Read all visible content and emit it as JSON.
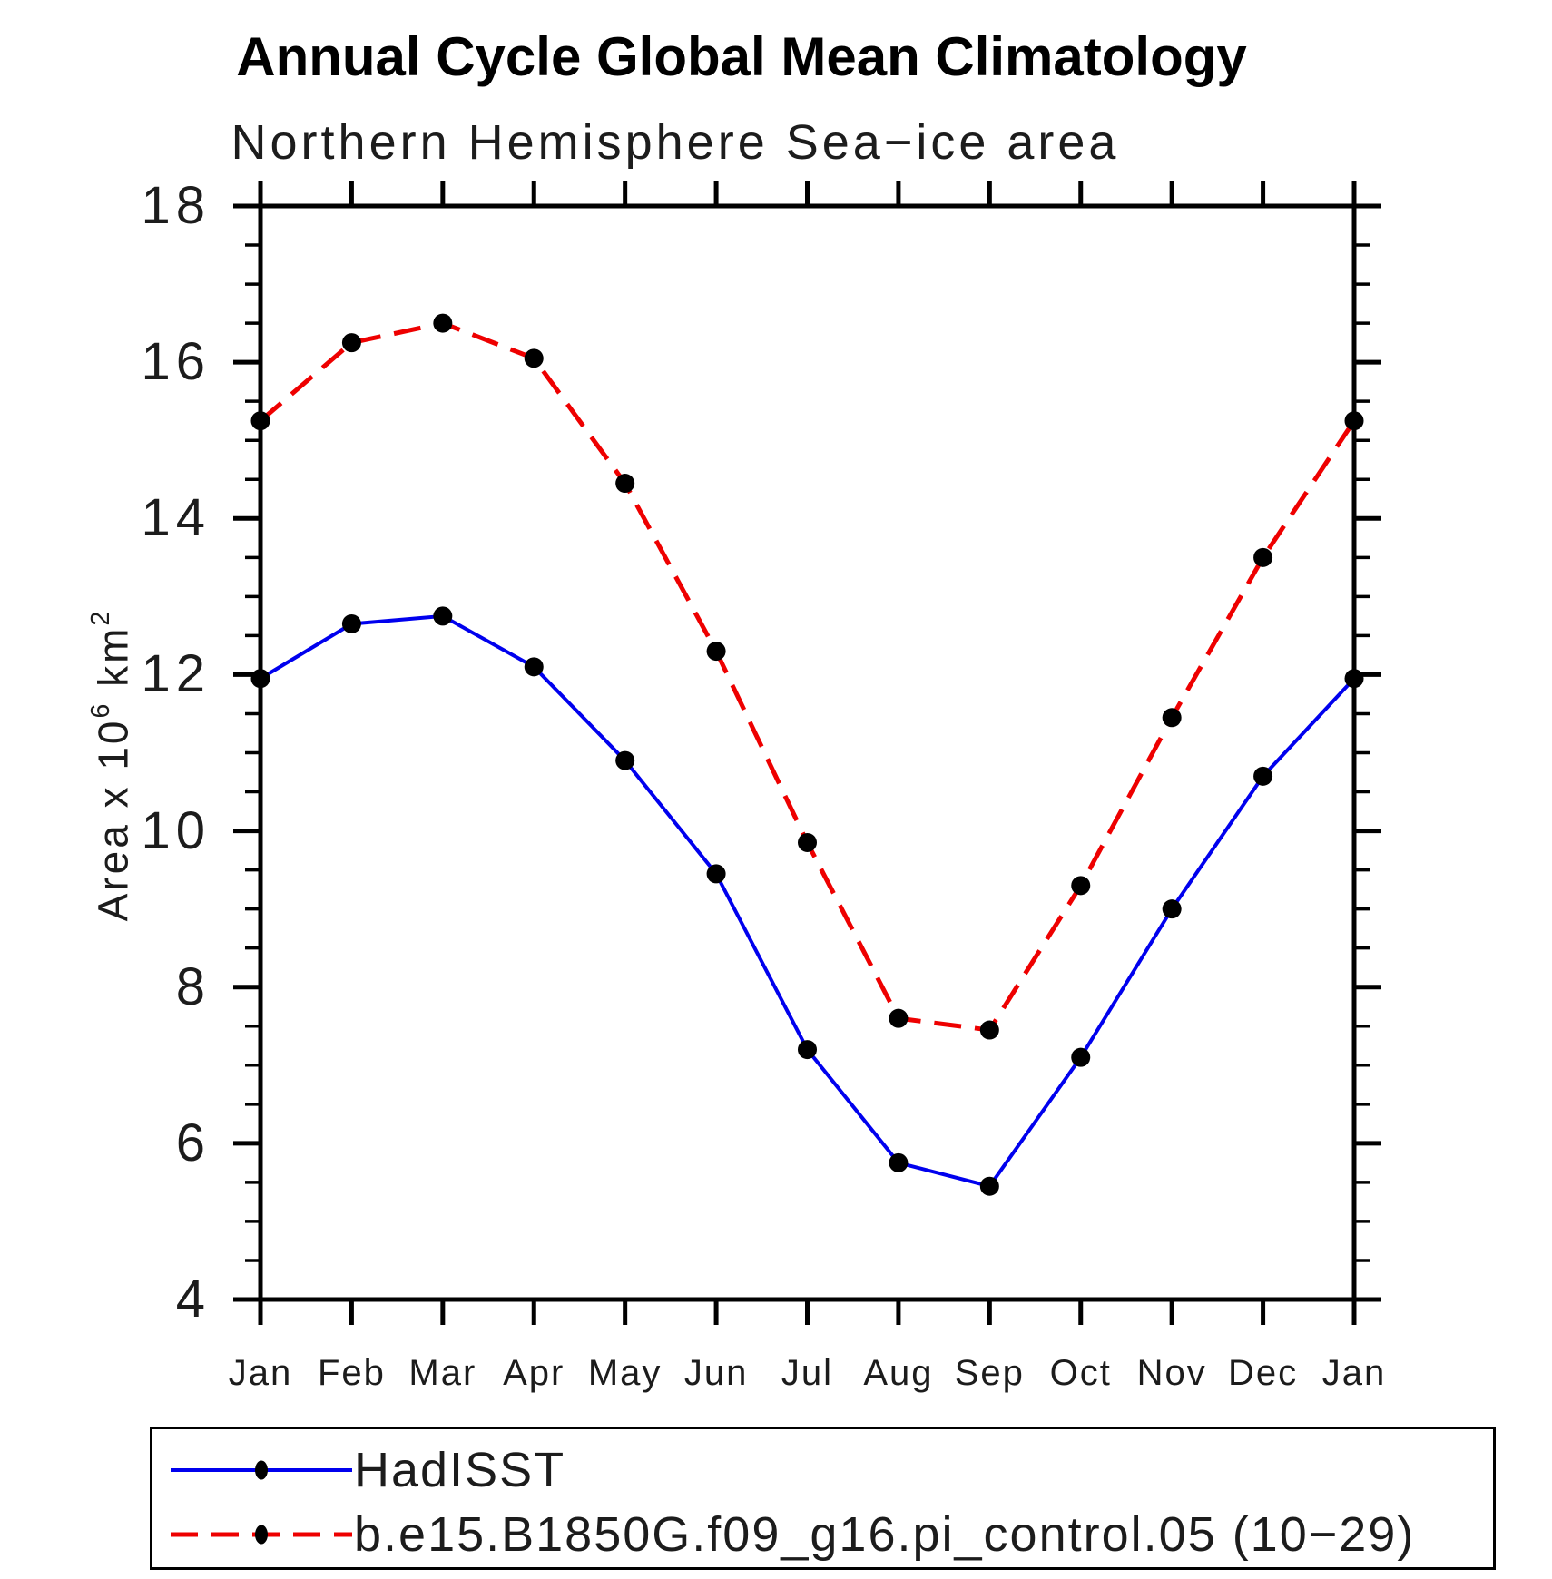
{
  "title": "Annual Cycle Global Mean Climatology",
  "subtitle": "Northern Hemisphere Sea−ice area",
  "y_axis_title": {
    "pre": "Area x 10",
    "sup1": "6",
    "mid": " km",
    "sup2": "2"
  },
  "chart_data": {
    "type": "line",
    "title": "Annual Cycle Global Mean Climatology",
    "subtitle": "Northern Hemisphere Sea−ice area",
    "xlabel": "",
    "ylabel": "Area x 10^6 km^2",
    "categories": [
      "Jan",
      "Feb",
      "Mar",
      "Apr",
      "May",
      "Jun",
      "Jul",
      "Aug",
      "Sep",
      "Oct",
      "Nov",
      "Dec",
      "Jan"
    ],
    "ylim": [
      4,
      18
    ],
    "y_major_tick_step": 2,
    "y_minor_tick_step": 0.5,
    "y_major_tick_labels": [
      "18",
      "16",
      "14",
      "12",
      "10",
      "8",
      "6",
      "4"
    ],
    "grid": false,
    "legend_position": "bottom",
    "frame_color": "#000000",
    "marker_color": "#000000",
    "series": [
      {
        "name": "HadISST",
        "color": "#0000ee",
        "line_style": "solid",
        "marker": "circle",
        "values": [
          11.95,
          12.65,
          12.75,
          12.1,
          10.9,
          9.45,
          7.2,
          5.75,
          5.45,
          7.1,
          9.0,
          10.7,
          11.95
        ]
      },
      {
        "name": "b.e15.B1850G.f09_g16.pi_control.05 (10−29)",
        "color": "#ee0000",
        "line_style": "dashed",
        "marker": "circle",
        "values": [
          15.25,
          16.25,
          16.5,
          16.05,
          14.45,
          12.3,
          9.85,
          7.6,
          7.45,
          9.3,
          11.45,
          13.5,
          15.25
        ]
      }
    ]
  }
}
